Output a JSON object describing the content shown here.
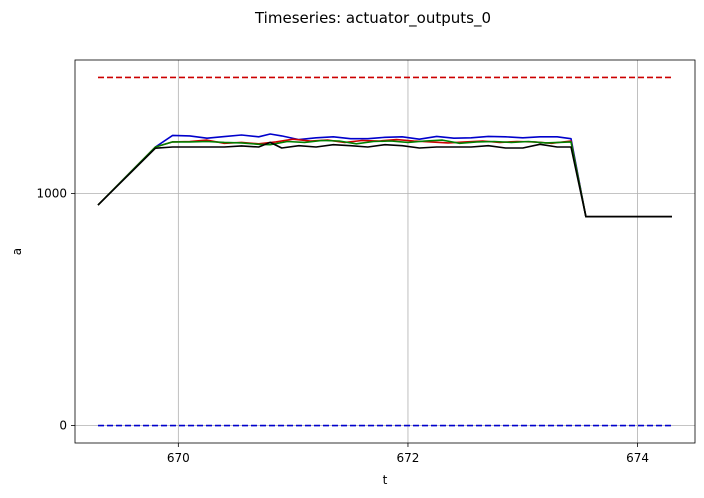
{
  "chart_data": {
    "type": "line",
    "title": "Timeseries: actuator_outputs_0",
    "xlabel": "t",
    "ylabel": "a",
    "xlim": [
      669.1,
      674.5
    ],
    "ylim": [
      -75,
      1575
    ],
    "xticks": [
      670,
      672,
      674
    ],
    "yticks": [
      0,
      1000
    ],
    "grid": true,
    "series": [
      {
        "color": "#0000cc",
        "style": "solid",
        "x": [
          669.3,
          669.8,
          669.95,
          670.1,
          670.25,
          670.4,
          670.55,
          670.7,
          670.8,
          670.9,
          671.05,
          671.2,
          671.35,
          671.5,
          671.65,
          671.8,
          671.95,
          672.1,
          672.25,
          672.4,
          672.55,
          672.7,
          672.85,
          673.0,
          673.15,
          673.3,
          673.42,
          673.55,
          674.3
        ],
        "y": [
          950,
          1200,
          1250,
          1248,
          1238,
          1245,
          1252,
          1244,
          1256,
          1248,
          1232,
          1240,
          1244,
          1236,
          1236,
          1242,
          1244,
          1234,
          1246,
          1238,
          1240,
          1246,
          1244,
          1240,
          1244,
          1244,
          1236,
          900,
          900
        ]
      },
      {
        "color": "#cc0000",
        "style": "solid",
        "x": [
          669.3,
          669.8,
          669.95,
          670.1,
          670.25,
          670.4,
          670.55,
          670.7,
          670.85,
          671.0,
          671.15,
          671.3,
          671.45,
          671.6,
          671.75,
          671.9,
          672.05,
          672.2,
          672.35,
          672.5,
          672.65,
          672.8,
          672.95,
          673.1,
          673.25,
          673.42,
          673.55,
          674.3
        ],
        "y": [
          950,
          1200,
          1222,
          1224,
          1230,
          1216,
          1220,
          1214,
          1222,
          1234,
          1226,
          1230,
          1220,
          1228,
          1226,
          1232,
          1226,
          1222,
          1218,
          1222,
          1226,
          1220,
          1224,
          1222,
          1216,
          1226,
          900,
          900
        ]
      },
      {
        "color": "#008000",
        "style": "solid",
        "x": [
          669.3,
          669.8,
          669.95,
          670.1,
          670.25,
          670.4,
          670.55,
          670.7,
          670.8,
          670.95,
          671.1,
          671.25,
          671.4,
          671.55,
          671.7,
          671.85,
          672.0,
          672.15,
          672.3,
          672.45,
          672.6,
          672.75,
          672.9,
          673.05,
          673.2,
          673.42,
          673.55,
          674.3
        ],
        "y": [
          950,
          1200,
          1222,
          1222,
          1224,
          1220,
          1218,
          1212,
          1210,
          1224,
          1220,
          1228,
          1226,
          1214,
          1224,
          1226,
          1220,
          1226,
          1230,
          1216,
          1222,
          1224,
          1220,
          1224,
          1218,
          1222,
          900,
          900
        ]
      },
      {
        "color": "#000000",
        "style": "solid",
        "x": [
          669.3,
          669.8,
          669.95,
          670.1,
          670.25,
          670.4,
          670.55,
          670.7,
          670.8,
          670.9,
          671.05,
          671.2,
          671.35,
          671.5,
          671.65,
          671.8,
          671.95,
          672.1,
          672.25,
          672.4,
          672.55,
          672.7,
          672.85,
          673.0,
          673.15,
          673.3,
          673.42,
          673.55,
          674.3
        ],
        "y": [
          950,
          1195,
          1200,
          1200,
          1200,
          1200,
          1205,
          1200,
          1220,
          1196,
          1206,
          1200,
          1210,
          1206,
          1200,
          1210,
          1206,
          1196,
          1200,
          1200,
          1200,
          1206,
          1196,
          1196,
          1212,
          1200,
          1200,
          900,
          900
        ]
      },
      {
        "color": "#cc0000",
        "style": "dashed",
        "x": [
          669.3,
          674.3
        ],
        "y": [
          1500,
          1500
        ]
      },
      {
        "color": "#0000cc",
        "style": "dashed",
        "x": [
          669.3,
          674.3
        ],
        "y": [
          0,
          0
        ]
      }
    ]
  }
}
